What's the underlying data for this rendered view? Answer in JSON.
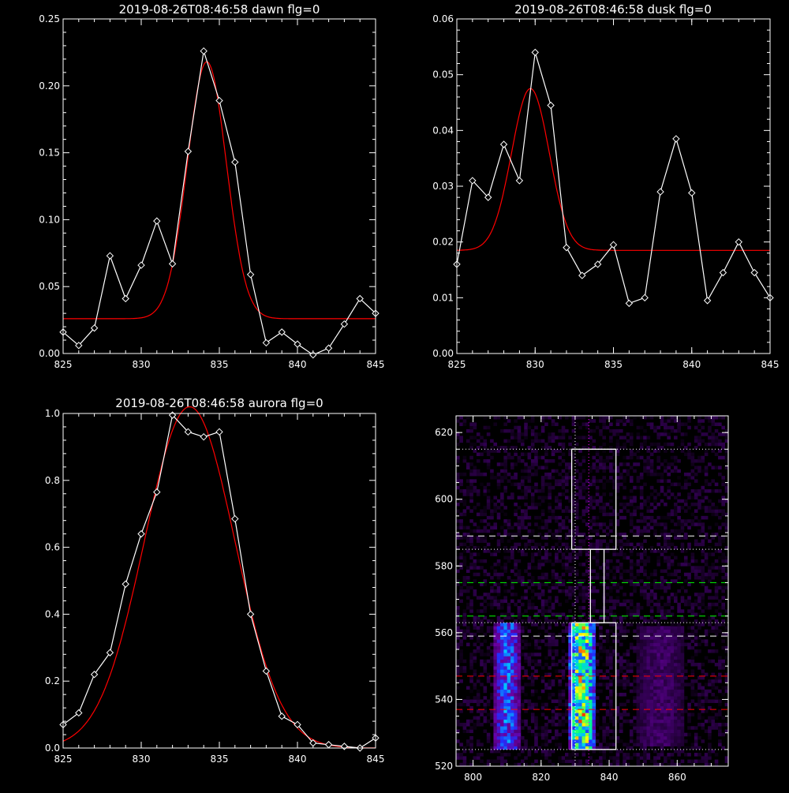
{
  "chart_data": [
    {
      "type": "line",
      "title": "2019-08-26T08:46:58 dawn flg=0",
      "xlim": [
        825,
        845
      ],
      "ylim": [
        0,
        0.25
      ],
      "xticks": [
        "825",
        "830",
        "835",
        "840",
        "845"
      ],
      "yticks": [
        "0.00",
        "0.05",
        "0.10",
        "0.15",
        "0.20",
        "0.25"
      ],
      "xtick_values": [
        825,
        830,
        835,
        840,
        845
      ],
      "ytick_values": [
        0,
        0.05,
        0.1,
        0.15,
        0.2,
        0.25
      ],
      "series": [
        {
          "color": "#ffffff",
          "marker": "diamond",
          "x": [
            825,
            826,
            827,
            828,
            829,
            830,
            831,
            832,
            833,
            834,
            835,
            836,
            837,
            838,
            839,
            840,
            841,
            842,
            843,
            844,
            845
          ],
          "y": [
            0.016,
            0.006,
            0.019,
            0.073,
            0.041,
            0.066,
            0.099,
            0.067,
            0.151,
            0.226,
            0.189,
            0.143,
            0.059,
            0.008,
            0.016,
            0.007,
            -0.001,
            0.004,
            0.022,
            0.041,
            0.03
          ]
        },
        {
          "color": "#ff0000",
          "fit": "gaussian",
          "baseline": 0.026,
          "amplitude": 0.192,
          "center": 834.2,
          "sigma": 1.25
        }
      ]
    },
    {
      "type": "line",
      "title": "2019-08-26T08:46:58 dusk flg=0",
      "xlim": [
        825,
        845
      ],
      "ylim": [
        0,
        0.06
      ],
      "xticks": [
        "825",
        "830",
        "835",
        "840",
        "845"
      ],
      "yticks": [
        "0.00",
        "0.01",
        "0.02",
        "0.03",
        "0.04",
        "0.05",
        "0.06"
      ],
      "xtick_values": [
        825,
        830,
        835,
        840,
        845
      ],
      "ytick_values": [
        0,
        0.01,
        0.02,
        0.03,
        0.04,
        0.05,
        0.06
      ],
      "series": [
        {
          "color": "#ffffff",
          "marker": "diamond",
          "x": [
            825,
            826,
            827,
            828,
            829,
            830,
            831,
            832,
            833,
            834,
            835,
            836,
            837,
            838,
            839,
            840,
            841,
            842,
            843,
            844,
            845
          ],
          "y": [
            0.016,
            0.031,
            0.028,
            0.0375,
            0.031,
            0.054,
            0.0445,
            0.019,
            0.014,
            0.016,
            0.0195,
            0.009,
            0.01,
            0.029,
            0.0385,
            0.0288,
            0.0095,
            0.0145,
            0.02,
            0.0145,
            0.01
          ]
        },
        {
          "color": "#ff0000",
          "fit": "gaussian",
          "baseline": 0.0185,
          "amplitude": 0.029,
          "center": 829.7,
          "sigma": 1.2
        }
      ]
    },
    {
      "type": "line",
      "title": "2019-08-26T08:46:58 aurora flg=0",
      "xlim": [
        825,
        845
      ],
      "ylim": [
        0,
        1.0
      ],
      "xticks": [
        "825",
        "830",
        "835",
        "840",
        "845"
      ],
      "yticks": [
        "0.0",
        "0.2",
        "0.4",
        "0.6",
        "0.8",
        "1.0"
      ],
      "xtick_values": [
        825,
        830,
        835,
        840,
        845
      ],
      "ytick_values": [
        0,
        0.2,
        0.4,
        0.6,
        0.8,
        1.0
      ],
      "series": [
        {
          "color": "#ffffff",
          "marker": "diamond",
          "x": [
            825,
            826,
            827,
            828,
            829,
            830,
            831,
            832,
            833,
            834,
            835,
            836,
            837,
            838,
            839,
            840,
            841,
            842,
            843,
            844,
            845
          ],
          "y": [
            0.07,
            0.105,
            0.22,
            0.285,
            0.49,
            0.64,
            0.765,
            0.995,
            0.945,
            0.93,
            0.945,
            0.685,
            0.4,
            0.23,
            0.095,
            0.07,
            0.015,
            0.01,
            0.005,
            0.0,
            0.03
          ]
        },
        {
          "color": "#ff0000",
          "fit": "gaussian",
          "baseline": 0.0,
          "amplitude": 1.02,
          "center": 833.1,
          "sigma": 2.9
        }
      ]
    },
    {
      "type": "heatmap",
      "title": "",
      "xlim": [
        795,
        875
      ],
      "ylim": [
        520,
        625
      ],
      "xticks": [
        "800",
        "820",
        "840",
        "860"
      ],
      "yticks": [
        "520",
        "540",
        "560",
        "580",
        "600",
        "620"
      ],
      "xtick_values": [
        800,
        820,
        840,
        860
      ],
      "ytick_values": [
        520,
        540,
        560,
        580,
        600,
        620
      ],
      "colormap": [
        "#000000",
        "#3a0060",
        "#6a00a0",
        "#2030ff",
        "#00c8ff",
        "#00ff80",
        "#ffff00",
        "#ff0000"
      ],
      "bright_columns": [
        {
          "x_range": [
            806,
            814
          ],
          "y_range": [
            525,
            563
          ],
          "intensity": 0.5
        },
        {
          "x_range": [
            828,
            836
          ],
          "y_range": [
            525,
            563
          ],
          "intensity": 0.85
        },
        {
          "x_range": [
            848,
            862
          ],
          "y_range": [
            526,
            562
          ],
          "intensity": 0.18
        }
      ],
      "boxes": [
        {
          "x_range": [
            829,
            842
          ],
          "y_range": [
            525,
            563
          ]
        },
        {
          "x_range": [
            829,
            842
          ],
          "y_range": [
            585,
            615
          ]
        },
        {
          "x_range": [
            834.5,
            838.5
          ],
          "y_range": [
            563,
            585
          ]
        }
      ],
      "dotted_lines_h": [
        525,
        563,
        585,
        615
      ],
      "dotted_lines_v": [
        830,
        834
      ],
      "dashed_lines": [
        {
          "y": 589,
          "color": "#ffffff"
        },
        {
          "y": 559,
          "color": "#ffffff"
        },
        {
          "y": 575,
          "color": "#00ff00"
        },
        {
          "y": 565,
          "color": "#00ff00"
        },
        {
          "y": 547,
          "color": "#ff0000"
        },
        {
          "y": 537,
          "color": "#ff0000"
        }
      ]
    }
  ]
}
